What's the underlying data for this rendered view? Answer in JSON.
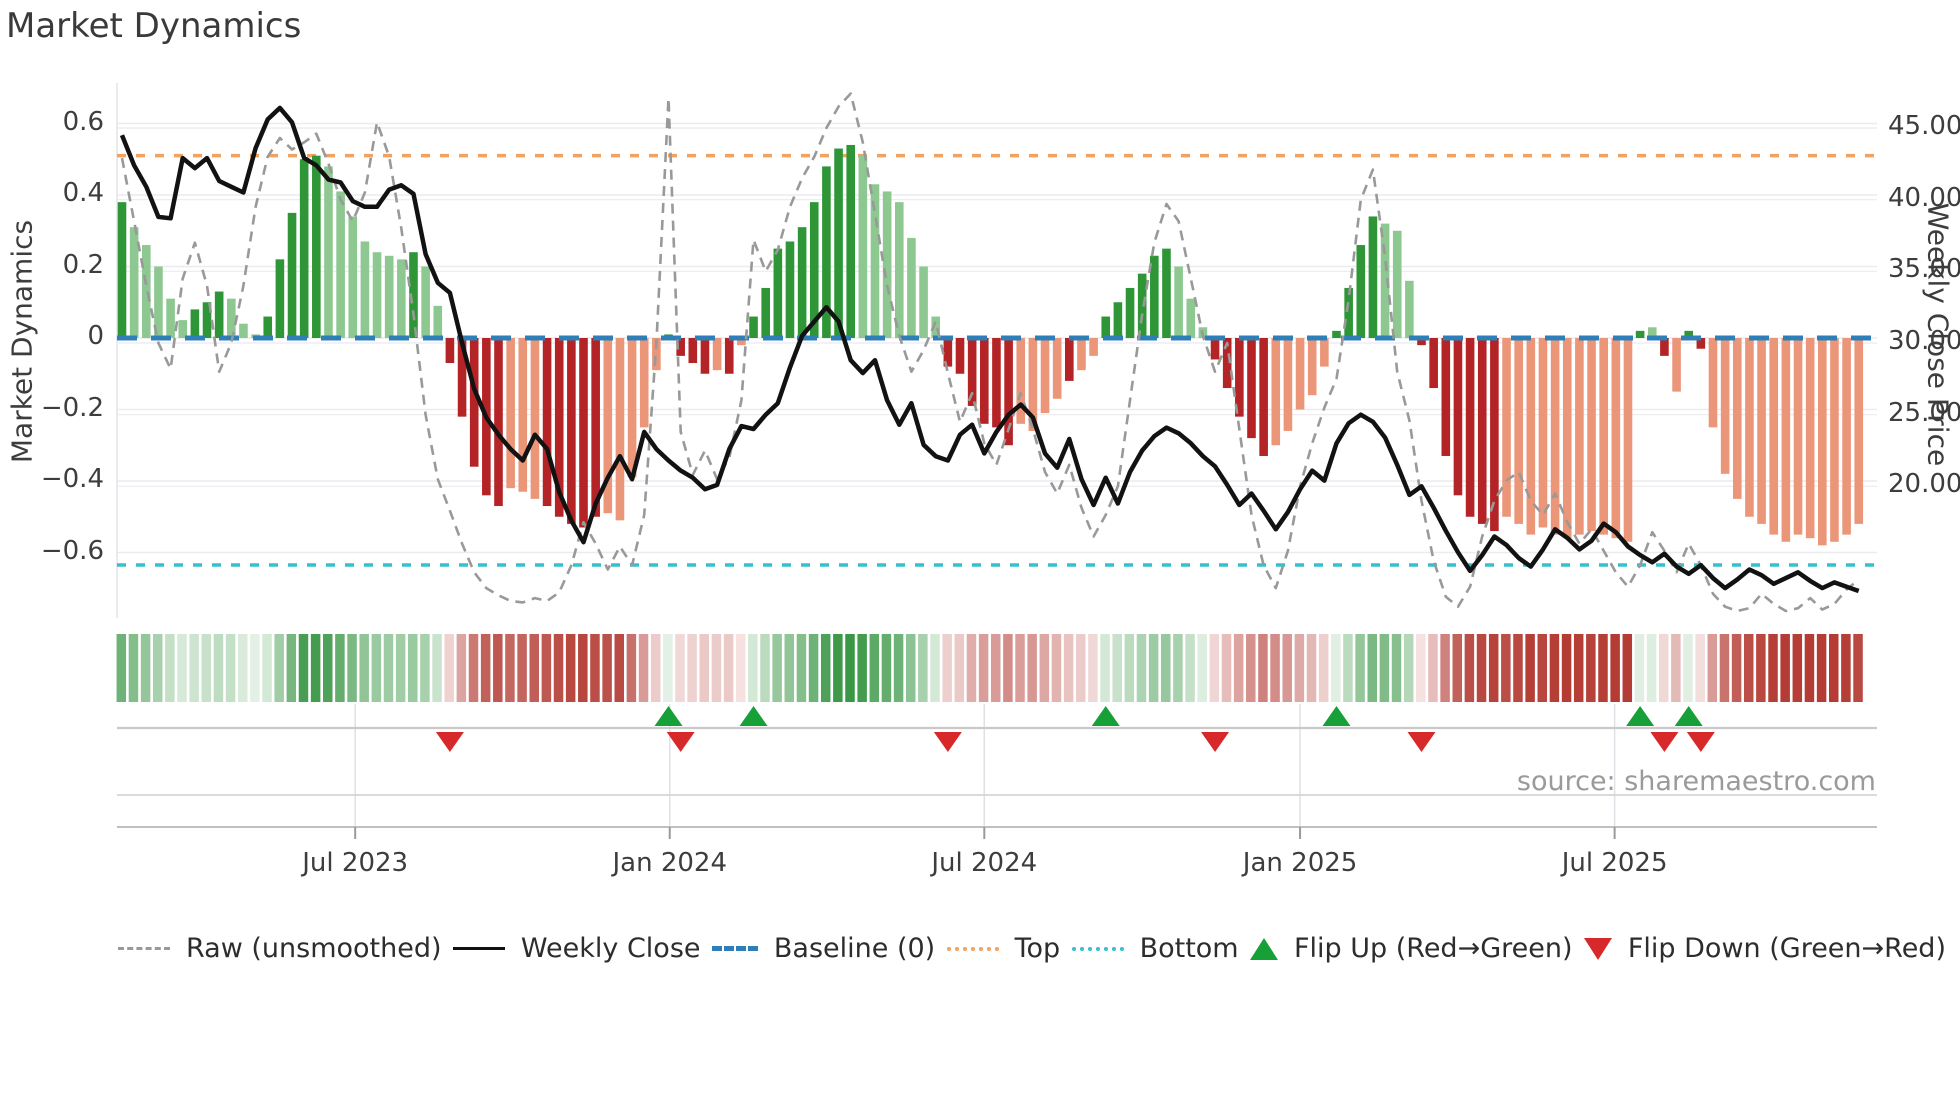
{
  "title": "Market Dynamics",
  "source_text": "source: sharemaestro.com",
  "axes": {
    "left_label": "Market Dynamics",
    "right_label": "Weekly Close Price",
    "left_tick_labels": [
      "0.6",
      "0.4",
      "0.2",
      "0",
      "−0.2",
      "−0.4",
      "−0.6"
    ],
    "left_tick_values": [
      0.6,
      0.4,
      0.2,
      0,
      -0.2,
      -0.4,
      -0.6
    ],
    "right_tick_labels": [
      "45.00",
      "40.00",
      "35.00",
      "30.00",
      "25.00",
      "20.00"
    ],
    "right_tick_values": [
      45,
      40,
      35,
      30,
      25,
      20
    ],
    "x_tick_labels": [
      "Jul 2023",
      "Jan 2024",
      "Jul 2024",
      "Jan 2025",
      "Jul 2025"
    ],
    "x_tick_week_positions": [
      19.2,
      45.1,
      71.0,
      97.0,
      122.9
    ]
  },
  "colors": {
    "bar_green_strong": "#2f9637",
    "bar_green_light": "#8dc891",
    "bar_red_strong": "#b42325",
    "bar_red_light": "#eb9679",
    "close_line": "#121212",
    "raw_line": "#999999",
    "baseline": "#2e7fb8",
    "top_line": "#f2a25c",
    "bottom_line": "#35c0cf",
    "flip_up": "#18a038",
    "flip_down": "#d7282a",
    "gridline": "#ebebf0",
    "heat_green_base": "#349440",
    "heat_red_base": "#b43c34"
  },
  "legend": {
    "items": [
      {
        "label": "Raw (unsmoothed)",
        "swatch": "dash-gray",
        "icon": "raw-dashed-line-icon"
      },
      {
        "label": "Weekly Close",
        "swatch": "line",
        "icon": "weekly-close-line-icon"
      },
      {
        "label": "Baseline (0)",
        "swatch": "dash-blue",
        "icon": "baseline-dash-icon"
      },
      {
        "label": "Top",
        "swatch": "dot-orange",
        "icon": "top-dotted-line-icon"
      },
      {
        "label": "Bottom",
        "swatch": "dot-cyan",
        "icon": "bottom-dotted-line-icon"
      },
      {
        "label": "Flip Up (Red→Green)",
        "swatch": "tri-up",
        "icon": "flip-up-triangle-icon"
      },
      {
        "label": "Flip Down (Green→Red)",
        "swatch": "tri-down",
        "icon": "flip-down-triangle-icon"
      }
    ]
  },
  "chart_data": {
    "type": "combo: weekly bar oscillator + close line + raw dashed line + heatmap strip + flip event markers",
    "x_unit": "week",
    "n_weeks": 144,
    "ylim_left": [
      -0.7,
      0.72
    ],
    "baseline": 0,
    "top_threshold": 0.51,
    "bottom_threshold": -0.635,
    "grid": "horizontal only",
    "legend_position": "bottom row",
    "bar_values": [
      0.38,
      0.31,
      0.26,
      0.2,
      0.11,
      0.05,
      0.08,
      0.1,
      0.13,
      0.11,
      0.04,
      0.01,
      0.06,
      0.22,
      0.35,
      0.5,
      0.51,
      0.48,
      0.41,
      0.34,
      0.27,
      0.24,
      0.23,
      0.22,
      0.24,
      0.2,
      0.09,
      -0.07,
      -0.22,
      -0.36,
      -0.44,
      -0.47,
      -0.42,
      -0.43,
      -0.45,
      -0.47,
      -0.5,
      -0.52,
      -0.53,
      -0.5,
      -0.49,
      -0.51,
      -0.39,
      -0.25,
      -0.09,
      0.01,
      -0.05,
      -0.07,
      -0.1,
      -0.09,
      -0.1,
      -0.02,
      0.06,
      0.14,
      0.25,
      0.27,
      0.31,
      0.38,
      0.48,
      0.53,
      0.54,
      0.51,
      0.43,
      0.41,
      0.38,
      0.28,
      0.2,
      0.06,
      -0.08,
      -0.1,
      -0.19,
      -0.24,
      -0.25,
      -0.3,
      -0.24,
      -0.26,
      -0.21,
      -0.17,
      -0.12,
      -0.09,
      -0.05,
      0.06,
      0.1,
      0.14,
      0.18,
      0.23,
      0.25,
      0.2,
      0.11,
      0.03,
      -0.06,
      -0.14,
      -0.22,
      -0.28,
      -0.33,
      -0.3,
      -0.26,
      -0.2,
      -0.16,
      -0.08,
      0.02,
      0.14,
      0.26,
      0.34,
      0.32,
      0.3,
      0.16,
      -0.02,
      -0.14,
      -0.33,
      -0.44,
      -0.5,
      -0.52,
      -0.54,
      -0.5,
      -0.52,
      -0.55,
      -0.53,
      -0.55,
      -0.56,
      -0.55,
      -0.54,
      -0.55,
      -0.56,
      -0.57,
      0.02,
      0.03,
      -0.05,
      -0.15,
      0.02,
      -0.03,
      -0.25,
      -0.38,
      -0.45,
      -0.5,
      -0.52,
      -0.55,
      -0.57,
      -0.55,
      -0.56,
      -0.58,
      -0.57,
      -0.55,
      -0.52
    ],
    "bar_shades": "GgggggGGGgggGGGGGgggggggGggRRRRRrrrRRRRRrrrrrGRRRrRrGGGGGGGGGgggggggRRRRRRrrrrRrrGGGGGGgggRRRRRrrrrrGGGGgggRRRRRRRrrrrrrrrrrrGgRrGRrrrrrrrrrrrrr",
    "weekly_close": [
      44.5,
      42.4,
      40.9,
      38.8,
      38.7,
      42.9,
      42.2,
      42.9,
      41.3,
      40.9,
      40.5,
      43.6,
      45.6,
      46.4,
      45.4,
      42.9,
      42.4,
      41.4,
      41.2,
      39.9,
      39.5,
      39.5,
      40.7,
      41.0,
      40.4,
      36.2,
      34.2,
      33.5,
      30.0,
      26.8,
      24.8,
      23.6,
      22.6,
      21.8,
      23.6,
      22.6,
      19.6,
      17.6,
      16.1,
      18.8,
      20.6,
      22.1,
      20.5,
      23.8,
      22.6,
      21.8,
      21.1,
      20.6,
      19.8,
      20.1,
      22.6,
      24.2,
      24.0,
      25.0,
      25.8,
      28.3,
      30.5,
      31.5,
      32.5,
      31.5,
      28.8,
      27.9,
      28.8,
      26.0,
      24.3,
      25.8,
      22.9,
      22.1,
      21.8,
      23.6,
      24.3,
      22.3,
      23.8,
      25.0,
      25.7,
      24.8,
      22.3,
      21.3,
      23.3,
      20.5,
      18.7,
      20.6,
      18.8,
      21.0,
      22.5,
      23.5,
      24.1,
      23.7,
      23.0,
      22.1,
      21.4,
      20.1,
      18.7,
      19.5,
      18.3,
      17.0,
      18.2,
      19.8,
      21.1,
      20.4,
      23.0,
      24.4,
      25.0,
      24.5,
      23.4,
      21.5,
      19.4,
      20.0,
      18.5,
      16.9,
      15.4,
      14.1,
      15.2,
      16.5,
      15.9,
      15.0,
      14.4,
      15.6,
      17.0,
      16.4,
      15.6,
      16.2,
      17.4,
      16.8,
      15.8,
      15.2,
      14.7,
      15.3,
      14.4,
      13.9,
      14.5,
      13.6,
      12.9,
      13.5,
      14.2,
      13.8,
      13.2,
      13.6,
      14.0,
      13.4,
      12.9,
      13.3,
      13.0,
      12.7
    ],
    "raw_unsmoothed": [
      42.9,
      38.5,
      34.0,
      30.0,
      28.2,
      34.5,
      37.0,
      34.0,
      28.0,
      30.0,
      34.0,
      39.5,
      43.0,
      44.3,
      43.5,
      44.0,
      44.6,
      42.5,
      40.0,
      38.5,
      40.5,
      45.4,
      43.0,
      38.0,
      32.0,
      25.0,
      20.5,
      18.3,
      16.0,
      14.0,
      12.9,
      12.4,
      12.0,
      11.9,
      12.2,
      12.0,
      12.6,
      14.5,
      17.5,
      16.0,
      14.2,
      15.8,
      14.5,
      18.0,
      30.0,
      47.1,
      23.8,
      20.8,
      22.5,
      20.5,
      22.0,
      26.0,
      37.2,
      35.0,
      36.5,
      39.5,
      41.5,
      43.0,
      45.0,
      46.5,
      47.4,
      44.0,
      39.0,
      34.0,
      30.5,
      28.0,
      29.5,
      31.5,
      27.9,
      24.5,
      26.5,
      23.0,
      21.5,
      24.0,
      26.5,
      24.0,
      21.0,
      19.5,
      21.5,
      18.5,
      16.5,
      18.0,
      20.0,
      26.0,
      32.0,
      37.0,
      39.7,
      38.5,
      34.5,
      30.5,
      28.0,
      30.0,
      24.0,
      18.0,
      14.5,
      12.9,
      15.5,
      20.0,
      23.0,
      25.5,
      27.5,
      33.0,
      40.0,
      42.1,
      36.0,
      28.0,
      24.6,
      19.0,
      14.8,
      12.3,
      11.6,
      13.0,
      16.5,
      19.0,
      20.4,
      21.0,
      19.0,
      18.0,
      19.5,
      17.5,
      16.0,
      17.0,
      15.5,
      14.0,
      13.0,
      14.5,
      16.8,
      15.5,
      14.0,
      16.0,
      14.5,
      12.5,
      11.6,
      11.3,
      11.5,
      12.5,
      11.8,
      11.3,
      11.5,
      12.2,
      11.4,
      11.8,
      12.8,
      13.5
    ],
    "flip_up_weeks": [
      45,
      52,
      81,
      100,
      125,
      129
    ],
    "flip_down_weeks": [
      27,
      46,
      68,
      90,
      107,
      127,
      130
    ]
  }
}
